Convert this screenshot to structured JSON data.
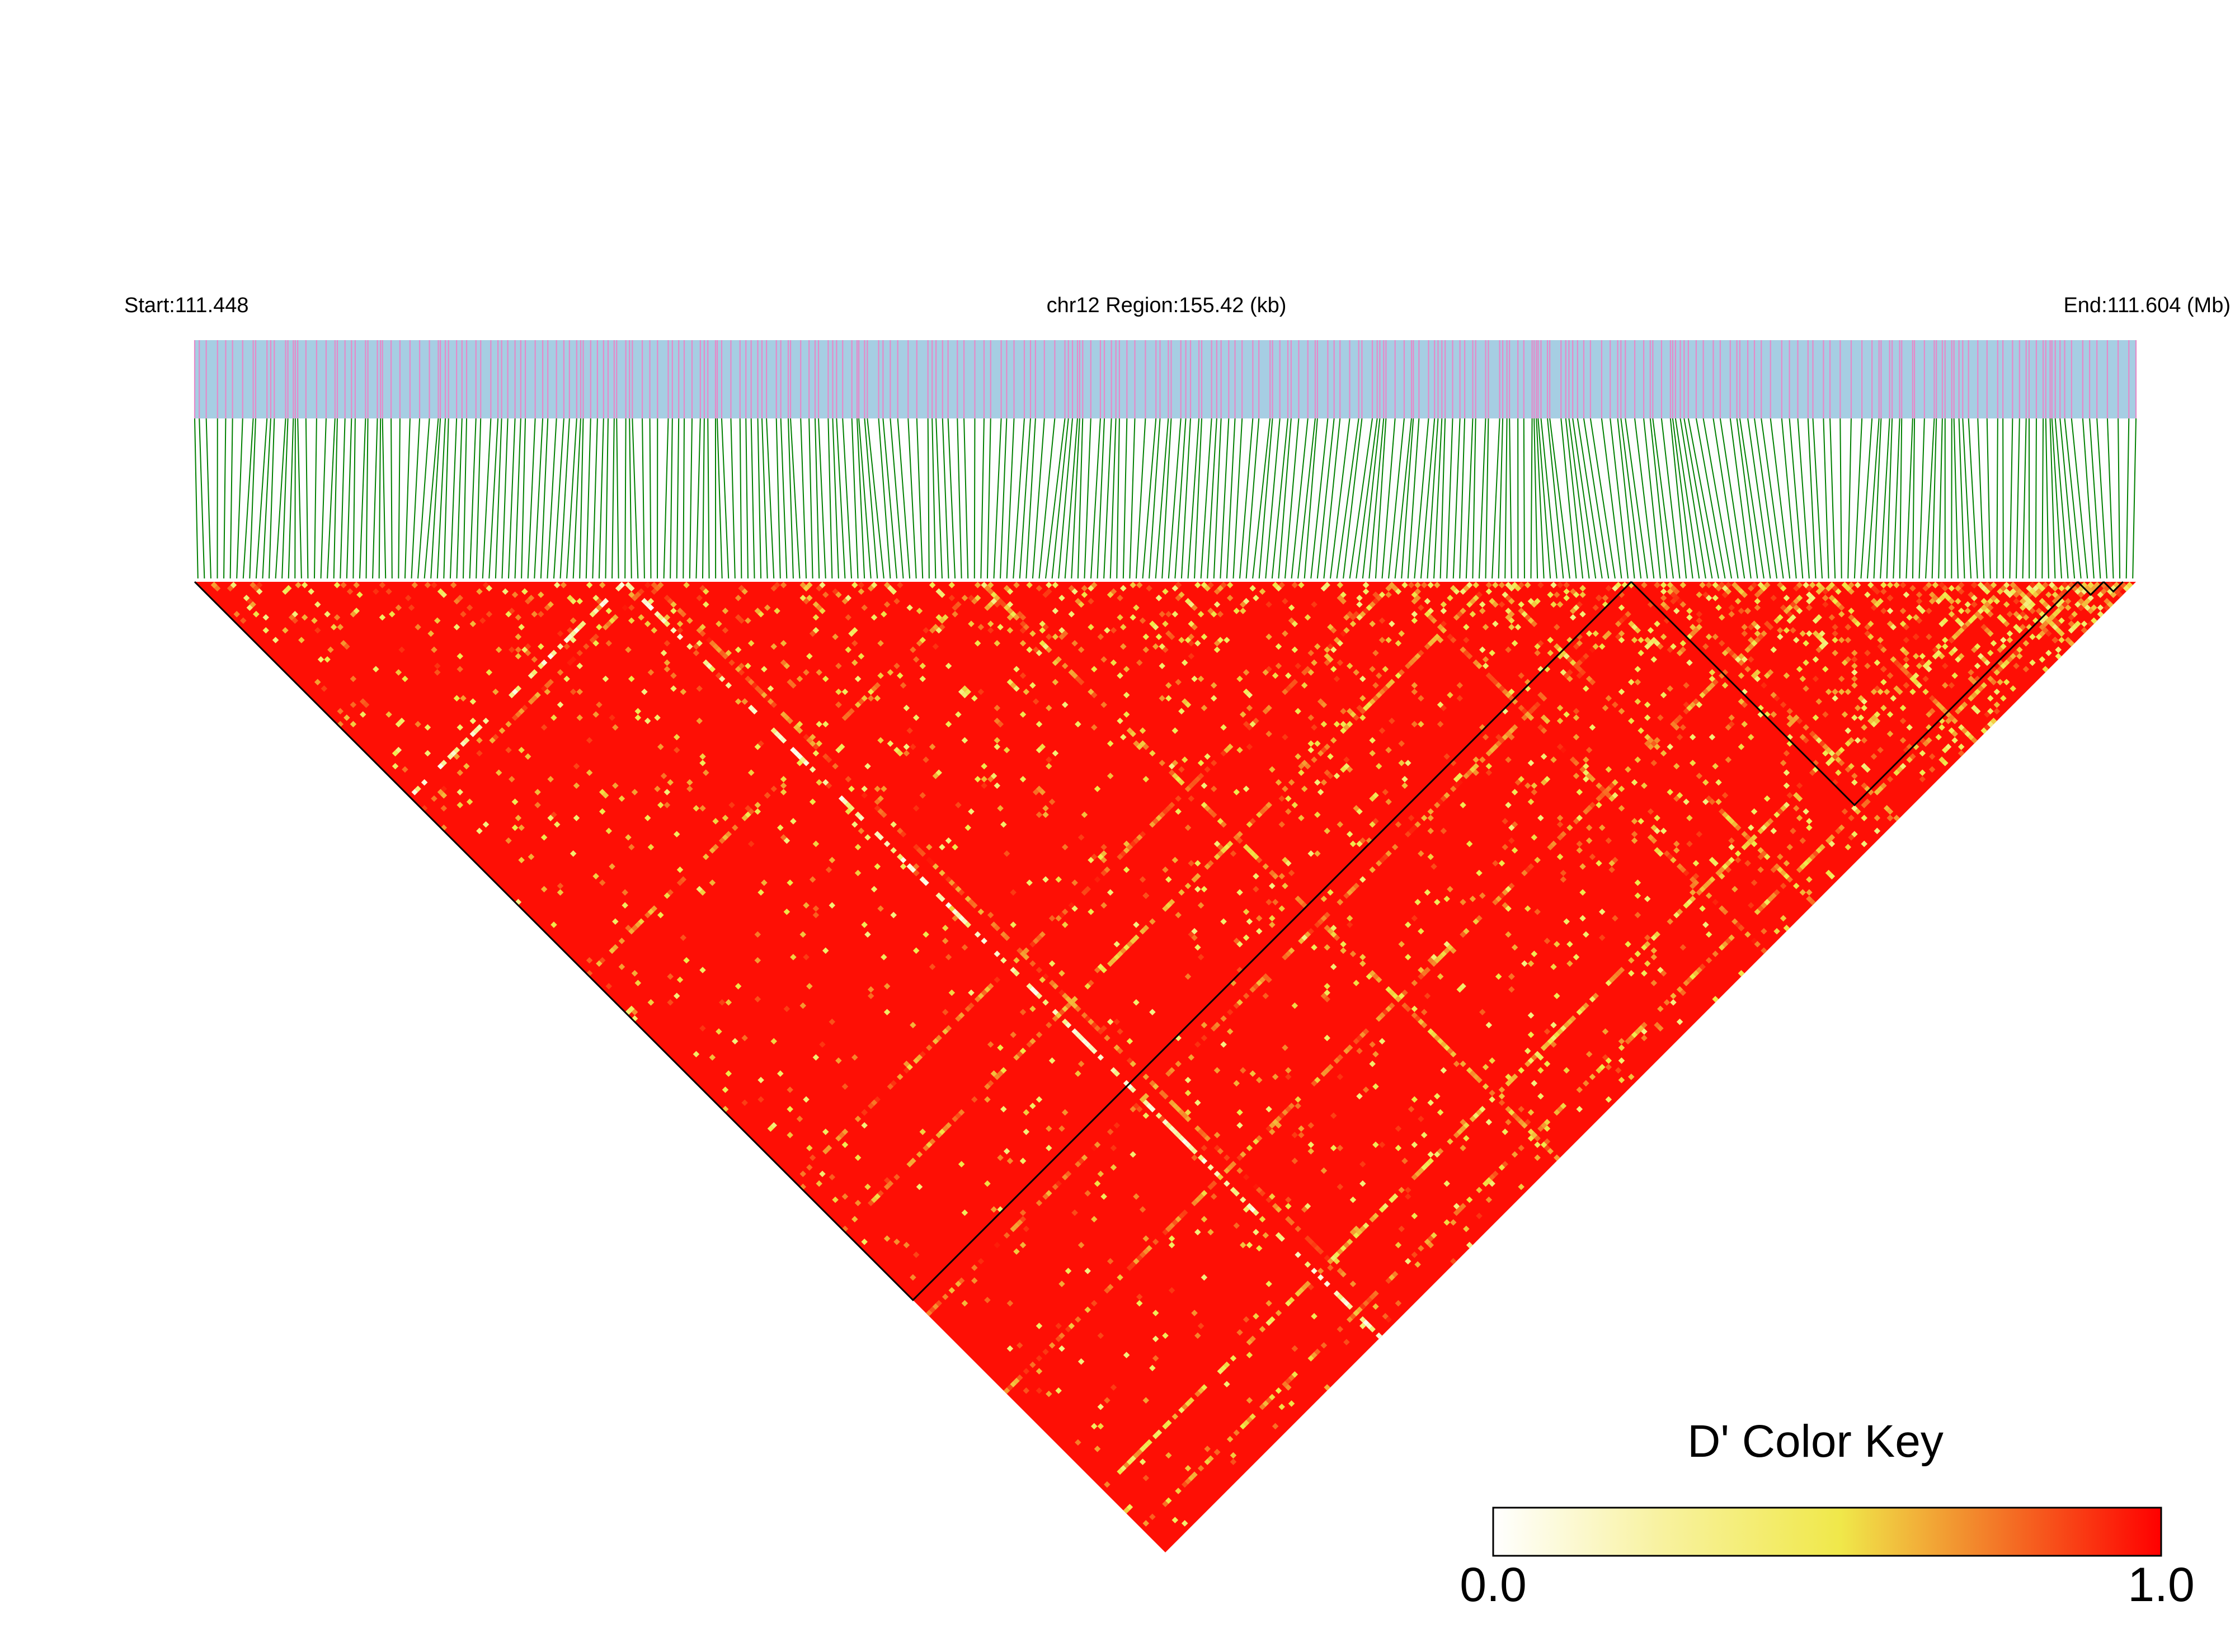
{
  "header": {
    "start_label": "Start:111.448",
    "region_label": "chr12 Region:155.42 (kb)",
    "end_label": "End:111.604 (Mb)"
  },
  "colors": {
    "snp_band": "#a6cee3",
    "snp_tick": "#e58ac9",
    "connector": "#008000",
    "heat_high": "#ff0000",
    "heat_low": "#ffffff"
  },
  "chart_data": {
    "type": "heatmap",
    "title": "",
    "chromosome": "chr12",
    "start_mb": 111.448,
    "end_mb": 111.604,
    "region_kb": 155.42,
    "metric": "D'",
    "color_key": {
      "title": "D' Color Key",
      "min_label": "0.0",
      "max_label": "1.0",
      "range": [
        0.0,
        1.0
      ],
      "stops": [
        "#ffffff",
        "#f0e84a",
        "#ff0000"
      ]
    },
    "snp_count": 300,
    "background_value": 0.97,
    "blocks": [
      {
        "from": 0,
        "to": 222
      },
      {
        "from": 222,
        "to": 291
      },
      {
        "from": 291,
        "to": 295
      },
      {
        "from": 295,
        "to": 298
      }
    ],
    "low_ld_snps": [
      {
        "index": 66,
        "value": 0.05
      },
      {
        "index": 70,
        "value": 0.6
      },
      {
        "index": 121,
        "value": 0.5
      },
      {
        "index": 185,
        "value": 0.6
      },
      {
        "index": 200,
        "value": 0.5
      },
      {
        "index": 226,
        "value": 0.6
      },
      {
        "index": 250,
        "value": 0.55
      },
      {
        "index": 280,
        "value": 0.4
      },
      {
        "index": 292,
        "value": 0.5
      }
    ]
  }
}
